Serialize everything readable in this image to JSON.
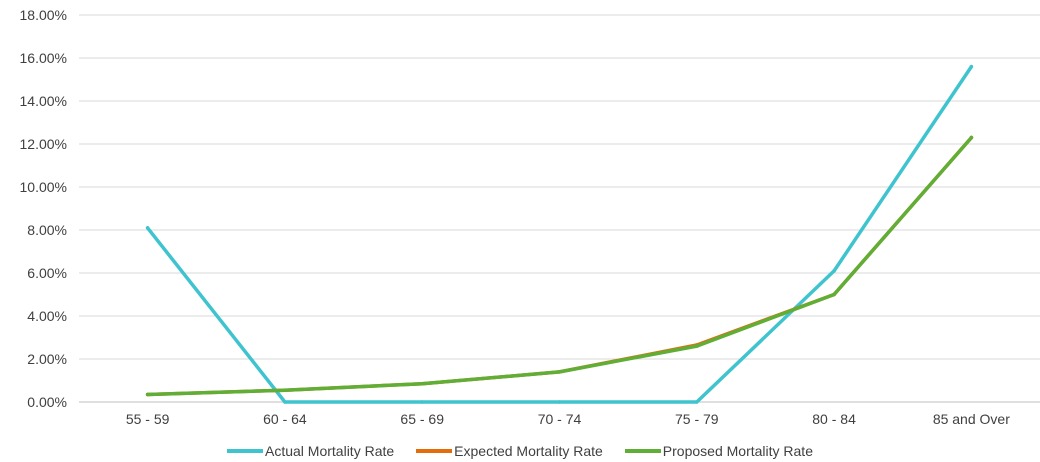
{
  "chart_data": {
    "type": "line",
    "categories": [
      "55 - 59",
      "60 - 64",
      "65 - 69",
      "70 - 74",
      "75 - 79",
      "80 - 84",
      "85 and Over"
    ],
    "series": [
      {
        "name": "Actual Mortality Rate",
        "color": "#3fc4cf",
        "values": [
          8.1,
          0.0,
          0.0,
          0.0,
          0.0,
          6.1,
          15.6
        ]
      },
      {
        "name": "Expected Mortality Rate",
        "color": "#e46c0a",
        "values": [
          0.35,
          0.55,
          0.85,
          1.4,
          2.65,
          5.0,
          12.3
        ]
      },
      {
        "name": "Proposed Mortality Rate",
        "color": "#5fae36",
        "values": [
          0.35,
          0.55,
          0.85,
          1.4,
          2.6,
          5.0,
          12.3
        ]
      }
    ],
    "yticks": [
      "0.00%",
      "2.00%",
      "4.00%",
      "6.00%",
      "8.00%",
      "10.00%",
      "12.00%",
      "14.00%",
      "16.00%",
      "18.00%"
    ],
    "ylim": [
      0,
      18
    ],
    "grid": true,
    "legend_position": "bottom"
  }
}
